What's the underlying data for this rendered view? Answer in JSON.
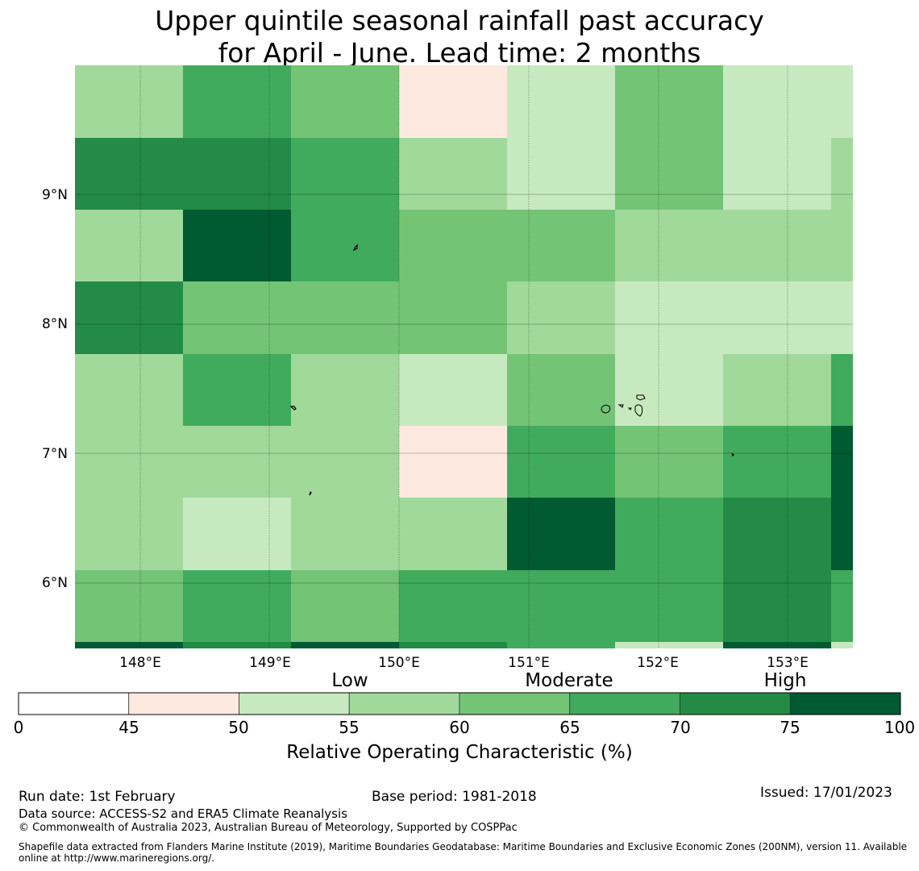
{
  "title": {
    "line1": "Upper quintile seasonal rainfall past accuracy",
    "line2": "for April - June. Lead time: 2 months"
  },
  "map": {
    "lat_labels": [
      "9°N",
      "8°N",
      "7°N",
      "6°N"
    ],
    "lon_labels": [
      "148°E",
      "149°E",
      "150°E",
      "151°E",
      "152°E",
      "153°E"
    ],
    "lon_range": [
      147.5,
      153.5
    ],
    "lat_range": [
      5.5,
      10.0
    ],
    "grid_cells_note_categories": "values are ROC category index 0-7 per cell",
    "cells": [
      [
        3,
        5,
        4,
        1,
        2,
        4,
        2,
        2
      ],
      [
        6,
        6,
        5,
        3,
        2,
        4,
        2,
        3
      ],
      [
        3,
        7,
        5,
        4,
        4,
        3,
        3,
        3
      ],
      [
        6,
        4,
        4,
        4,
        3,
        2,
        2,
        2
      ],
      [
        3,
        5,
        3,
        2,
        4,
        2,
        3,
        5
      ],
      [
        3,
        3,
        3,
        1,
        5,
        4,
        5,
        7
      ],
      [
        3,
        2,
        3,
        3,
        7,
        5,
        6,
        7
      ],
      [
        4,
        5,
        4,
        5,
        5,
        5,
        6,
        5
      ],
      [
        7,
        6,
        7,
        6,
        5,
        2,
        7,
        2
      ]
    ]
  },
  "colorbar": {
    "categories": [
      "Low",
      "Moderate",
      "High"
    ],
    "ticks": [
      "0",
      "45",
      "50",
      "55",
      "60",
      "65",
      "70",
      "75",
      "100"
    ],
    "colors": [
      "#ffffff",
      "#fee9e0",
      "#c7e9c0",
      "#a1d99b",
      "#74c476",
      "#41ab5d",
      "#238b45",
      "#005a32"
    ],
    "title": "Relative Operating Characteristic (%)"
  },
  "footer": {
    "run_date": "Run date: 1st February",
    "base_period": "Base period: 1981-2018",
    "issued": "Issued: 17/01/2023",
    "data_source": "Data source: ACCESS-S2 and ERA5 Climate Reanalysis",
    "copyright": "© Commonwealth of Australia 2023, Australian Bureau of Meteorology, Supported by COSPPac",
    "shapefile_line1": "Shapefile data extracted from Flanders Marine Institute (2019), Maritime Boundaries Geodatabase: Maritime Boundaries and Exclusive Economic Zones (200NM), version 11. Available",
    "shapefile_line2": "online at http://www.marineregions.org/."
  }
}
